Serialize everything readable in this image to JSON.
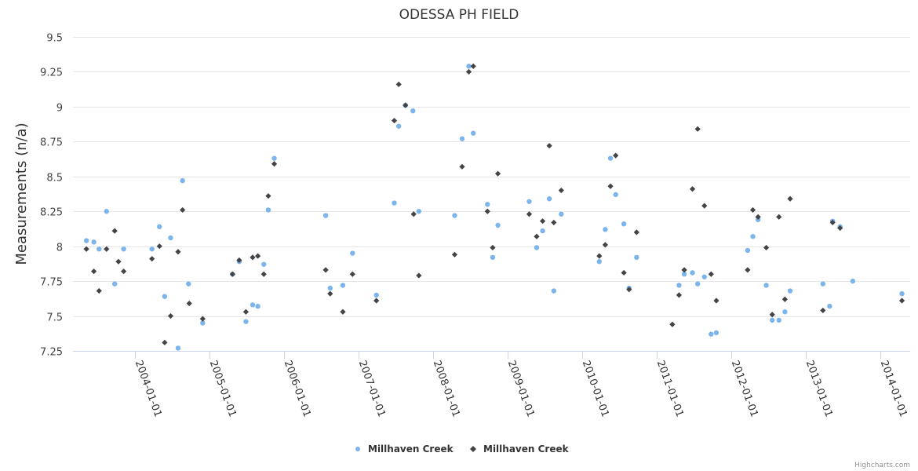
{
  "chart_data": {
    "type": "scatter",
    "title": "ODESSA PH FIELD",
    "xlabel": "",
    "ylabel": "Measurements (n/a)",
    "xlim": [
      2003.17,
      2014.4
    ],
    "ylim": [
      7.25,
      9.5
    ],
    "y_ticks": [
      9.5,
      9.25,
      9,
      8.75,
      8.5,
      8.25,
      8,
      7.75,
      7.5,
      7.25
    ],
    "y_tick_labels": [
      "9.5",
      "9.25",
      "9",
      "8.75",
      "8.5",
      "8.25",
      "8",
      "7.75",
      "7.5",
      "7.25"
    ],
    "x_ticks": [
      2004,
      2005,
      2006,
      2007,
      2008,
      2009,
      2010,
      2011,
      2012,
      2013,
      2014
    ],
    "x_tick_labels": [
      "2004-01-01",
      "2005-01-01",
      "2006-01-01",
      "2007-01-01",
      "2008-01-01",
      "2009-01-01",
      "2010-01-01",
      "2011-01-01",
      "2012-01-01",
      "2013-01-01",
      "2014-01-01"
    ],
    "grid": true,
    "legend_position": "bottom-center",
    "series": [
      {
        "name": "Millhaven Creek",
        "color": "#7cb5ec",
        "marker": "circle",
        "points": [
          [
            2003.35,
            8.04
          ],
          [
            2003.45,
            8.03
          ],
          [
            2003.52,
            7.98
          ],
          [
            2003.62,
            8.25
          ],
          [
            2003.73,
            7.73
          ],
          [
            2003.85,
            7.98
          ],
          [
            2004.23,
            7.98
          ],
          [
            2004.33,
            8.14
          ],
          [
            2004.4,
            7.64
          ],
          [
            2004.48,
            8.06
          ],
          [
            2004.58,
            7.27
          ],
          [
            2004.64,
            8.47
          ],
          [
            2004.72,
            7.73
          ],
          [
            2004.91,
            7.45
          ],
          [
            2005.31,
            7.8
          ],
          [
            2005.4,
            7.89
          ],
          [
            2005.49,
            7.46
          ],
          [
            2005.58,
            7.58
          ],
          [
            2005.65,
            7.57
          ],
          [
            2005.73,
            7.87
          ],
          [
            2005.79,
            8.26
          ],
          [
            2005.87,
            8.63
          ],
          [
            2006.56,
            8.22
          ],
          [
            2006.62,
            7.7
          ],
          [
            2006.79,
            7.72
          ],
          [
            2006.92,
            7.95
          ],
          [
            2007.24,
            7.65
          ],
          [
            2007.48,
            8.31
          ],
          [
            2007.54,
            8.86
          ],
          [
            2007.63,
            9.01
          ],
          [
            2007.73,
            8.97
          ],
          [
            2007.81,
            8.25
          ],
          [
            2008.29,
            8.22
          ],
          [
            2008.39,
            8.77
          ],
          [
            2008.48,
            9.29
          ],
          [
            2008.54,
            8.81
          ],
          [
            2008.73,
            8.3
          ],
          [
            2008.8,
            7.92
          ],
          [
            2008.87,
            8.15
          ],
          [
            2009.29,
            8.32
          ],
          [
            2009.39,
            7.99
          ],
          [
            2009.47,
            8.11
          ],
          [
            2009.56,
            8.34
          ],
          [
            2009.62,
            7.68
          ],
          [
            2009.72,
            8.23
          ],
          [
            2010.23,
            7.89
          ],
          [
            2010.31,
            8.12
          ],
          [
            2010.38,
            8.63
          ],
          [
            2010.45,
            8.37
          ],
          [
            2010.56,
            8.16
          ],
          [
            2010.63,
            7.7
          ],
          [
            2010.73,
            7.92
          ],
          [
            2011.3,
            7.72
          ],
          [
            2011.37,
            7.8
          ],
          [
            2011.48,
            7.81
          ],
          [
            2011.55,
            7.73
          ],
          [
            2011.64,
            7.78
          ],
          [
            2011.73,
            7.37
          ],
          [
            2011.8,
            7.38
          ],
          [
            2012.22,
            7.97
          ],
          [
            2012.29,
            8.07
          ],
          [
            2012.36,
            8.19
          ],
          [
            2012.47,
            7.72
          ],
          [
            2012.55,
            7.47
          ],
          [
            2012.64,
            7.47
          ],
          [
            2012.72,
            7.53
          ],
          [
            2012.79,
            7.68
          ],
          [
            2013.23,
            7.73
          ],
          [
            2013.32,
            7.57
          ],
          [
            2013.36,
            8.18
          ],
          [
            2013.46,
            8.14
          ],
          [
            2013.63,
            7.75
          ],
          [
            2014.29,
            7.66
          ]
        ]
      },
      {
        "name": "Millhaven Creek",
        "color": "#434348",
        "marker": "diamond",
        "points": [
          [
            2003.35,
            7.98
          ],
          [
            2003.45,
            7.82
          ],
          [
            2003.52,
            7.68
          ],
          [
            2003.62,
            7.98
          ],
          [
            2003.73,
            8.11
          ],
          [
            2003.78,
            7.89
          ],
          [
            2003.85,
            7.82
          ],
          [
            2004.23,
            7.91
          ],
          [
            2004.33,
            8.0
          ],
          [
            2004.4,
            7.31
          ],
          [
            2004.48,
            7.5
          ],
          [
            2004.58,
            7.96
          ],
          [
            2004.64,
            8.26
          ],
          [
            2004.73,
            7.59
          ],
          [
            2004.91,
            7.48
          ],
          [
            2005.31,
            7.8
          ],
          [
            2005.4,
            7.9
          ],
          [
            2005.49,
            7.53
          ],
          [
            2005.58,
            7.92
          ],
          [
            2005.65,
            7.93
          ],
          [
            2005.73,
            7.8
          ],
          [
            2005.79,
            8.36
          ],
          [
            2005.87,
            8.59
          ],
          [
            2006.56,
            7.83
          ],
          [
            2006.62,
            7.66
          ],
          [
            2006.79,
            7.53
          ],
          [
            2006.92,
            7.8
          ],
          [
            2007.24,
            7.61
          ],
          [
            2007.48,
            8.9
          ],
          [
            2007.54,
            9.16
          ],
          [
            2007.63,
            9.01
          ],
          [
            2007.74,
            8.23
          ],
          [
            2007.81,
            7.79
          ],
          [
            2008.29,
            7.94
          ],
          [
            2008.39,
            8.57
          ],
          [
            2008.48,
            9.25
          ],
          [
            2008.54,
            9.29
          ],
          [
            2008.73,
            8.25
          ],
          [
            2008.8,
            7.99
          ],
          [
            2008.87,
            8.52
          ],
          [
            2009.29,
            8.23
          ],
          [
            2009.39,
            8.07
          ],
          [
            2009.47,
            8.18
          ],
          [
            2009.56,
            8.72
          ],
          [
            2009.62,
            8.17
          ],
          [
            2009.72,
            8.4
          ],
          [
            2010.23,
            7.93
          ],
          [
            2010.31,
            8.01
          ],
          [
            2010.38,
            8.43
          ],
          [
            2010.45,
            8.65
          ],
          [
            2010.56,
            7.81
          ],
          [
            2010.63,
            7.69
          ],
          [
            2010.73,
            8.1
          ],
          [
            2011.21,
            7.44
          ],
          [
            2011.3,
            7.65
          ],
          [
            2011.37,
            7.83
          ],
          [
            2011.48,
            8.41
          ],
          [
            2011.55,
            8.84
          ],
          [
            2011.64,
            8.29
          ],
          [
            2011.73,
            7.8
          ],
          [
            2011.8,
            7.61
          ],
          [
            2012.22,
            7.83
          ],
          [
            2012.29,
            8.26
          ],
          [
            2012.36,
            8.21
          ],
          [
            2012.47,
            7.99
          ],
          [
            2012.55,
            7.51
          ],
          [
            2012.64,
            8.21
          ],
          [
            2012.72,
            7.62
          ],
          [
            2012.79,
            8.34
          ],
          [
            2013.23,
            7.54
          ],
          [
            2013.36,
            8.17
          ],
          [
            2013.46,
            8.13
          ],
          [
            2014.29,
            7.61
          ]
        ]
      }
    ]
  },
  "legend": {
    "items": [
      {
        "label": "Millhaven Creek",
        "color": "#7cb5ec",
        "marker": "circle"
      },
      {
        "label": "Millhaven Creek",
        "color": "#434348",
        "marker": "diamond"
      }
    ]
  },
  "credits": "Highcharts.com"
}
